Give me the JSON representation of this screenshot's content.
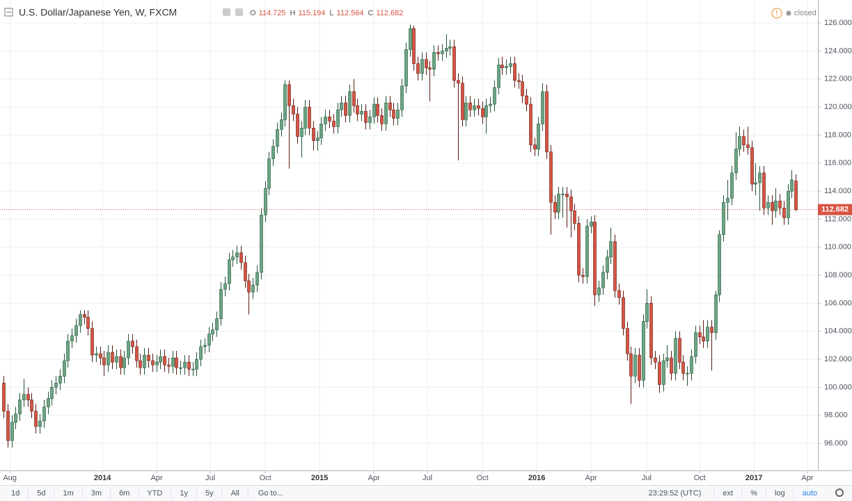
{
  "chart_data": {
    "type": "candlestick",
    "title": "U.S. Dollar/Japanese Yen, W, FXCM",
    "ohlc_labels": [
      "O",
      "H",
      "L",
      "C"
    ],
    "status": "closed",
    "up_color": "#6ba583",
    "down_color": "#d75442",
    "grid": true,
    "log_scale": false,
    "ylim": [
      94.07,
      127.64
    ],
    "yticks": [
      {
        "value": 96,
        "label": "96.000"
      },
      {
        "value": 98,
        "label": "98.000"
      },
      {
        "value": 100,
        "label": "100.000"
      },
      {
        "value": 102,
        "label": "102.000"
      },
      {
        "value": 104,
        "label": "104.000"
      },
      {
        "value": 106,
        "label": "106.000"
      },
      {
        "value": 108,
        "label": "108.000"
      },
      {
        "value": 110,
        "label": "110.000"
      },
      {
        "value": 112,
        "label": "112.000"
      },
      {
        "value": 114,
        "label": "114.000"
      },
      {
        "value": 116,
        "label": "116.000"
      },
      {
        "value": 118,
        "label": "118.000"
      },
      {
        "value": 120,
        "label": "120.000"
      },
      {
        "value": 122,
        "label": "122.000"
      },
      {
        "value": 124,
        "label": "124.000"
      },
      {
        "value": 126,
        "label": "126.000"
      }
    ],
    "xlim": [
      -0.87,
      202.5
    ],
    "xticks": [
      {
        "value": 1.6,
        "label": "Aug"
      },
      {
        "value": 24.6,
        "label": "2014"
      },
      {
        "value": 38.1,
        "label": "Apr"
      },
      {
        "value": 51.4,
        "label": "Jul"
      },
      {
        "value": 65.1,
        "label": "Oct"
      },
      {
        "value": 78.6,
        "label": "2015"
      },
      {
        "value": 92.1,
        "label": "Apr"
      },
      {
        "value": 105.4,
        "label": "Jul"
      },
      {
        "value": 119.1,
        "label": "Oct"
      },
      {
        "value": 132.6,
        "label": "2016"
      },
      {
        "value": 146.1,
        "label": "Apr"
      },
      {
        "value": 159.9,
        "label": "Jul"
      },
      {
        "value": 173.1,
        "label": "Oct"
      },
      {
        "value": 186.6,
        "label": "2017"
      },
      {
        "value": 199.9,
        "label": "Apr"
      }
    ],
    "open": [
      100.3,
      98.3,
      96.2,
      97.5,
      98.1,
      99.1,
      99.5,
      99.1,
      98.3,
      97.2,
      97.6,
      98.6,
      99.2,
      100.0,
      100.3,
      100.8,
      101.9,
      103.3,
      103.7,
      104.4,
      105.2,
      105.0,
      104.2,
      102.3,
      102.4,
      102.1,
      101.6,
      102.5,
      101.8,
      102.2,
      101.4,
      102.1,
      103.3,
      102.9,
      101.9,
      101.4,
      102.3,
      101.9,
      101.6,
      101.8,
      102.2,
      101.6,
      101.5,
      102.1,
      101.4,
      101.4,
      101.8,
      101.3,
      101.3,
      102.0,
      102.9,
      103.0,
      103.8,
      104.1,
      104.9,
      107.0,
      107.4,
      109.1,
      109.3,
      109.6,
      108.9,
      107.6,
      106.8,
      107.3,
      108.2,
      112.3,
      114.2,
      116.3,
      117.2,
      118.4,
      119.1,
      121.6,
      120.1,
      119.5,
      117.9,
      118.5,
      120.0,
      118.5,
      117.6,
      117.8,
      118.8,
      119.3,
      119.0,
      118.6,
      119.8,
      120.3,
      119.4,
      121.1,
      120.1,
      119.5,
      119.7,
      118.9,
      119.3,
      120.2,
      119.4,
      118.8,
      120.3,
      119.8,
      119.2,
      119.8,
      121.5,
      124.1,
      125.6,
      123.1,
      122.4,
      123.4,
      122.8,
      122.7,
      123.9,
      123.8,
      124.0,
      124.2,
      124.3,
      121.9,
      121.7,
      119.1,
      120.3,
      119.8,
      120.1,
      119.9,
      119.3,
      120.1,
      120.2,
      121.4,
      123.0,
      122.8,
      122.9,
      123.1,
      121.9,
      121.8,
      120.8,
      120.2,
      117.3,
      117.0,
      118.8,
      121.1,
      116.8,
      113.2,
      112.5,
      113.8,
      113.8,
      113.6,
      112.6,
      111.7,
      108.0,
      107.9,
      111.5,
      111.8,
      106.6,
      107.1,
      108.2,
      109.3,
      110.4,
      106.9,
      106.4,
      104.2,
      102.4,
      100.8,
      102.3,
      100.5,
      104.7,
      106.0,
      102.1,
      101.8,
      100.2,
      101.9,
      102.1,
      101.0,
      103.5,
      101.8,
      101.0,
      101.0,
      102.2,
      103.9,
      103.6,
      103.3,
      104.3,
      103.9,
      106.6,
      110.9,
      113.2,
      113.5,
      115.3,
      117.0,
      117.9,
      117.3,
      117.1,
      114.5,
      114.6,
      115.3,
      112.8,
      113.2,
      112.6,
      113.3,
      112.8,
      112.1,
      114.0,
      114.725
    ],
    "high": [
      100.8,
      98.8,
      98.0,
      98.6,
      99.6,
      100.6,
      100.0,
      99.6,
      98.8,
      98.1,
      99.1,
      99.7,
      100.5,
      100.8,
      101.3,
      102.4,
      103.8,
      104.2,
      104.9,
      105.5,
      105.5,
      105.5,
      104.7,
      102.9,
      102.9,
      102.6,
      103.0,
      103.0,
      102.7,
      102.7,
      102.6,
      103.8,
      103.8,
      103.4,
      102.4,
      102.8,
      102.8,
      102.4,
      102.3,
      102.7,
      102.7,
      102.1,
      102.6,
      102.6,
      101.9,
      102.3,
      102.3,
      101.8,
      102.5,
      103.4,
      103.5,
      104.3,
      104.6,
      105.4,
      107.5,
      107.9,
      109.6,
      109.8,
      110.1,
      110.1,
      109.4,
      108.1,
      107.8,
      108.7,
      112.8,
      114.7,
      116.8,
      117.7,
      118.9,
      119.6,
      121.9,
      121.9,
      120.6,
      120.0,
      119.0,
      120.5,
      120.5,
      119.0,
      118.3,
      119.3,
      119.8,
      119.8,
      119.5,
      120.3,
      120.8,
      120.8,
      121.6,
      122.0,
      120.6,
      120.2,
      120.2,
      119.8,
      120.7,
      120.7,
      119.9,
      120.8,
      120.8,
      120.3,
      120.3,
      122.0,
      124.6,
      125.9,
      125.8,
      123.6,
      123.9,
      123.9,
      123.3,
      124.4,
      124.4,
      124.5,
      125.2,
      124.8,
      124.8,
      122.4,
      122.2,
      120.8,
      120.8,
      120.6,
      120.6,
      120.4,
      120.6,
      120.7,
      121.9,
      123.5,
      123.6,
      123.4,
      123.6,
      123.6,
      122.4,
      122.3,
      121.3,
      120.7,
      117.8,
      119.3,
      121.7,
      121.6,
      117.3,
      113.7,
      114.3,
      114.3,
      114.3,
      114.1,
      113.1,
      112.2,
      108.5,
      112.0,
      112.2,
      112.3,
      107.6,
      108.7,
      109.8,
      111.4,
      110.9,
      107.4,
      106.9,
      104.7,
      102.9,
      102.8,
      102.8,
      105.2,
      107.0,
      106.5,
      102.6,
      102.3,
      102.4,
      103.0,
      102.6,
      104.0,
      104.0,
      102.3,
      101.5,
      102.7,
      104.4,
      104.4,
      104.8,
      104.8,
      104.8,
      106.9,
      111.2,
      113.7,
      114.8,
      115.8,
      118.2,
      118.6,
      118.4,
      118.6,
      117.6,
      116.0,
      115.8,
      115.8,
      113.7,
      113.7,
      114.2,
      113.8,
      113.3,
      114.5,
      115.5,
      115.194
    ],
    "low": [
      97.8,
      95.7,
      95.7,
      97.0,
      97.6,
      98.6,
      98.6,
      97.8,
      96.7,
      96.7,
      97.1,
      98.1,
      98.7,
      99.5,
      99.8,
      100.3,
      101.4,
      102.8,
      103.2,
      103.9,
      104.5,
      103.7,
      101.8,
      101.8,
      101.6,
      100.8,
      101.1,
      101.3,
      101.3,
      100.9,
      100.9,
      101.6,
      102.4,
      101.4,
      100.9,
      100.9,
      101.4,
      101.1,
      101.1,
      101.3,
      101.1,
      101.0,
      101.0,
      100.9,
      100.9,
      100.9,
      100.8,
      100.8,
      100.8,
      101.5,
      102.4,
      102.5,
      103.3,
      103.6,
      104.4,
      106.5,
      106.9,
      108.6,
      108.8,
      108.4,
      107.1,
      105.2,
      106.3,
      106.8,
      107.7,
      111.8,
      113.7,
      115.8,
      116.7,
      117.9,
      118.6,
      115.6,
      119.0,
      117.4,
      116.4,
      118.0,
      118.0,
      116.9,
      116.9,
      117.3,
      118.3,
      118.5,
      118.1,
      118.1,
      119.3,
      118.9,
      118.9,
      119.6,
      119.0,
      119.0,
      118.4,
      118.4,
      118.8,
      118.9,
      118.3,
      118.3,
      119.3,
      118.7,
      118.7,
      119.3,
      121.0,
      123.6,
      122.6,
      121.9,
      121.9,
      122.3,
      120.4,
      122.2,
      123.3,
      123.3,
      123.5,
      123.7,
      121.4,
      116.2,
      118.6,
      118.6,
      119.3,
      119.3,
      119.4,
      118.8,
      118.1,
      119.6,
      119.7,
      120.9,
      122.3,
      122.3,
      122.4,
      121.4,
      121.3,
      120.3,
      119.7,
      116.8,
      116.5,
      116.5,
      118.3,
      116.3,
      110.9,
      112.0,
      112.0,
      112.1,
      111.4,
      110.7,
      111.2,
      107.5,
      107.4,
      107.4,
      111.0,
      105.8,
      106.1,
      106.6,
      107.7,
      108.8,
      106.4,
      105.9,
      103.7,
      101.9,
      98.8,
      100.3,
      100.0,
      100.0,
      104.2,
      101.6,
      101.3,
      99.6,
      99.7,
      101.4,
      100.5,
      100.5,
      101.3,
      100.5,
      100.1,
      100.5,
      101.7,
      103.1,
      102.8,
      102.8,
      101.2,
      103.4,
      106.1,
      110.4,
      111.9,
      113.0,
      114.8,
      116.5,
      116.8,
      116.6,
      114.0,
      113.7,
      112.6,
      112.3,
      112.3,
      111.6,
      112.1,
      112.3,
      111.6,
      111.6,
      113.5,
      112.564
    ],
    "close": [
      98.3,
      96.2,
      97.5,
      98.1,
      99.1,
      99.5,
      99.1,
      98.3,
      97.2,
      97.6,
      98.6,
      99.2,
      100.0,
      100.3,
      100.8,
      101.9,
      103.3,
      103.7,
      104.4,
      105.2,
      105.0,
      104.2,
      102.3,
      102.4,
      102.1,
      101.6,
      102.5,
      101.8,
      102.2,
      101.4,
      102.1,
      103.3,
      102.9,
      101.9,
      101.4,
      102.3,
      101.9,
      101.6,
      101.8,
      102.2,
      101.6,
      101.5,
      102.1,
      101.4,
      101.4,
      101.8,
      101.3,
      101.3,
      102.0,
      102.9,
      103.0,
      103.8,
      104.1,
      104.9,
      107.0,
      107.4,
      109.1,
      109.3,
      109.6,
      108.9,
      107.6,
      106.8,
      107.3,
      108.2,
      112.3,
      114.2,
      116.3,
      117.2,
      118.4,
      119.1,
      121.6,
      120.1,
      119.5,
      117.9,
      118.5,
      120.0,
      118.5,
      117.6,
      117.8,
      118.8,
      119.3,
      119.0,
      118.6,
      119.8,
      120.3,
      119.4,
      121.1,
      120.1,
      119.5,
      119.7,
      118.9,
      119.3,
      120.2,
      119.4,
      118.8,
      120.3,
      119.8,
      119.2,
      119.8,
      121.5,
      124.1,
      125.6,
      123.1,
      122.4,
      123.4,
      122.8,
      122.7,
      123.9,
      123.8,
      124.0,
      124.2,
      124.3,
      121.9,
      121.7,
      119.1,
      120.3,
      119.8,
      120.1,
      119.9,
      119.3,
      120.1,
      120.2,
      121.4,
      123.0,
      122.8,
      122.9,
      123.1,
      121.9,
      121.8,
      120.8,
      120.2,
      117.3,
      117.0,
      118.8,
      121.1,
      116.8,
      113.2,
      112.5,
      113.8,
      113.8,
      113.6,
      112.6,
      111.7,
      108.0,
      107.9,
      111.5,
      111.8,
      106.6,
      107.1,
      108.2,
      109.3,
      110.4,
      106.9,
      106.4,
      104.2,
      102.4,
      100.8,
      102.3,
      100.5,
      104.7,
      106.0,
      102.1,
      101.8,
      100.2,
      101.9,
      102.1,
      101.0,
      103.5,
      101.8,
      101.0,
      101.0,
      102.2,
      103.9,
      103.6,
      103.3,
      104.3,
      103.9,
      106.6,
      110.9,
      113.2,
      113.5,
      115.3,
      117.0,
      117.9,
      117.3,
      117.1,
      114.5,
      114.6,
      115.3,
      112.8,
      113.2,
      112.6,
      113.3,
      112.8,
      112.1,
      114.0,
      114.8,
      112.682
    ]
  },
  "toolbar": {
    "ranges": [
      "1d",
      "5d",
      "1m",
      "3m",
      "6m",
      "YTD",
      "1y",
      "5y",
      "All"
    ],
    "goto": "Go to...",
    "time": "23:29:52 (UTC)",
    "options": [
      "ext",
      "%",
      "log",
      "auto"
    ]
  }
}
